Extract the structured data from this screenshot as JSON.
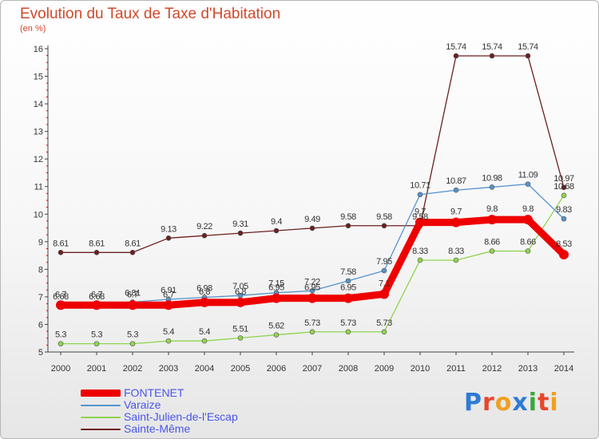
{
  "header": {
    "title": "Evolution du Taux de Taxe d'Habitation",
    "unit": "(en %)"
  },
  "logo": {
    "text": "Proxiti",
    "colors": [
      "#2e7bd6",
      "#e8462b",
      "#f0a020",
      "#2e7bd6",
      "#3aa63a",
      "#e8462b",
      "#f0a020"
    ]
  },
  "chart_data": {
    "type": "line",
    "title": "Evolution du Taux de Taxe d'Habitation",
    "ylabel": "(en %)",
    "xlabel": "",
    "ylim": [
      5,
      16
    ],
    "yticks": [
      "5",
      "6",
      "7",
      "8",
      "9",
      "10",
      "11",
      "12",
      "13",
      "14",
      "15",
      "16"
    ],
    "grid": false,
    "categories": [
      "2000",
      "2001",
      "2002",
      "2003",
      "2004",
      "2005",
      "2006",
      "2007",
      "2008",
      "2009",
      "2010",
      "2011",
      "2012",
      "2013",
      "2014"
    ],
    "series": [
      {
        "name": "Sainte-Même",
        "color": "#6b1f1f",
        "thick": false,
        "label_pos": "above",
        "values": [
          8.61,
          8.61,
          8.61,
          9.13,
          9.22,
          9.31,
          9.4,
          9.49,
          9.58,
          9.58,
          9.58,
          15.74,
          15.74,
          15.74,
          10.97
        ],
        "labels": [
          "8.61",
          "8.61",
          "8.61",
          "9.13",
          "9.22",
          "9.31",
          "9.4",
          "9.49",
          "9.58",
          "9.58",
          "9.58",
          "15.74",
          "15.74",
          "15.74",
          "10.97"
        ]
      },
      {
        "name": "Saint-Julien-de-l'Escap",
        "color": "#8fd44e",
        "thick": false,
        "label_pos": "above",
        "values": [
          5.3,
          5.3,
          5.3,
          5.4,
          5.4,
          5.51,
          5.62,
          5.73,
          5.73,
          5.73,
          8.33,
          8.33,
          8.66,
          8.66,
          10.68
        ],
        "labels": [
          "5.3",
          "5.3",
          "5.3",
          "5.4",
          "5.4",
          "5.51",
          "5.62",
          "5.73",
          "5.73",
          "5.73",
          "8.33",
          "8.33",
          "8.66",
          "8.66",
          "10.68"
        ]
      },
      {
        "name": "Varaize",
        "color": "#5593cd",
        "thick": false,
        "label_pos": "above",
        "values": [
          6.68,
          6.68,
          6.81,
          6.91,
          6.98,
          7.05,
          7.15,
          7.22,
          7.58,
          7.95,
          10.71,
          10.87,
          10.98,
          11.09,
          9.83
        ],
        "labels": [
          "6.68",
          "6.68",
          "6.81",
          "6.91",
          "6.98",
          "7.05",
          "7.15",
          "7.22",
          "7.58",
          "7.95",
          "10.71",
          "10.87",
          "10.98",
          "11.09",
          "9.83"
        ]
      },
      {
        "name": "FONTENET",
        "color": "#ee0000",
        "thick": true,
        "label_pos": "above",
        "values": [
          6.7,
          6.7,
          6.7,
          6.7,
          6.8,
          6.8,
          6.95,
          6.95,
          6.95,
          7.1,
          9.7,
          9.7,
          9.8,
          9.8,
          8.53
        ],
        "labels": [
          "6.7",
          "6.7",
          "6.7",
          "6.7",
          "6.8",
          "6.8",
          "6.95",
          "6.95",
          "6.95",
          "7.1",
          "9.7",
          "9.7",
          "9.8",
          "9.8",
          "8.53"
        ]
      }
    ],
    "legend": [
      {
        "name": "FONTENET",
        "color": "#ee0000",
        "thick": true
      },
      {
        "name": "Varaize",
        "color": "#5593cd",
        "thick": false
      },
      {
        "name": "Saint-Julien-de-l'Escap",
        "color": "#8fd44e",
        "thick": false
      },
      {
        "name": "Sainte-Même",
        "color": "#6b1f1f",
        "thick": false
      }
    ],
    "legend_position": "bottom-left",
    "axis_color": "#444444",
    "label_color": "#333333",
    "minor_tick_color": "#ee0000"
  }
}
